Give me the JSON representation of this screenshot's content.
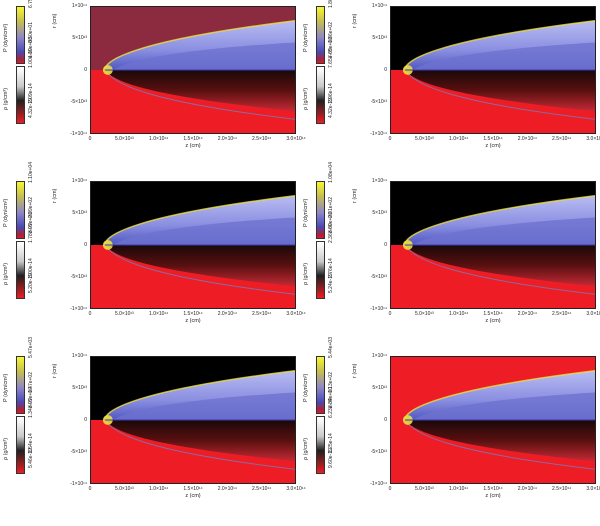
{
  "panels": [
    {
      "id": "top-left",
      "background": "#8c2a40",
      "colorbar_pressure": {
        "label": "P (dyn/cm²)",
        "ticks": [
          "6.75e+03",
          "8.50e+01",
          "1.10e+00"
        ]
      },
      "colorbar_density": {
        "label": "ρ (g/cm³)",
        "ticks": [
          "1.00e-09",
          "2.09e-14",
          "4.32e-19"
        ]
      },
      "y_label": "r (cm)",
      "y_ticks": [
        "1×10¹⁴",
        "5×10¹³",
        "0",
        "-5×10¹³",
        "-1×10¹⁴"
      ],
      "x_label": "z (cm)",
      "x_ticks": [
        "0",
        "5.0×10¹³",
        "1.0×10¹⁴",
        "1.5×10¹⁴",
        "2.0×10¹⁴",
        "2.5×10¹⁴",
        "3.0×10¹⁴"
      ]
    },
    {
      "id": "top-right",
      "background": "#000000",
      "colorbar_pressure": {
        "label": "P (dyn/cm²)",
        "ticks": [
          "1.86e+04",
          "1.86e+02",
          "7.65e+00"
        ]
      },
      "colorbar_density": {
        "label": "ρ (g/cm³)",
        "ticks": [
          "7.65e-09",
          "2.96e-14",
          "4.32e-19"
        ]
      },
      "y_label": "r (cm)",
      "y_ticks": [
        "1×10¹⁴",
        "5×10¹³",
        "0",
        "-5×10¹³",
        "-1×10¹⁴"
      ],
      "x_label": "z (cm)",
      "x_ticks": [
        "0",
        "5.0×10¹³",
        "1.0×10¹⁴",
        "1.5×10¹⁴",
        "2.0×10¹⁴",
        "2.5×10¹⁴",
        "3.0×10¹⁴"
      ]
    },
    {
      "id": "middle-left",
      "background": "#000000",
      "colorbar_pressure": {
        "label": "P (dyn/cm²)",
        "ticks": [
          "1.10e+04",
          "2.09e+02",
          "3.97e+00"
        ]
      },
      "colorbar_density": {
        "label": "ρ (g/cm³)",
        "ticks": [
          "1.78e-09",
          "3.00e-14",
          "5.20e-19"
        ]
      },
      "y_label": "r (cm)",
      "y_ticks": [
        "1×10¹⁴",
        "5×10¹³",
        "0",
        "-5×10¹³",
        "-1×10¹⁴"
      ],
      "x_label": "z (cm)",
      "x_ticks": [
        "0",
        "5.0×10¹³",
        "1.0×10¹⁴",
        "1.5×10¹⁴",
        "2.0×10¹⁴",
        "2.5×10¹⁴",
        "3.0×10¹⁴"
      ]
    },
    {
      "id": "middle-right",
      "background": "#000000",
      "colorbar_pressure": {
        "label": "P (dyn/cm²)",
        "ticks": [
          "1.08e+04",
          "2.01e+02",
          "3.60e+00"
        ]
      },
      "colorbar_density": {
        "label": "ρ (g/cm³)",
        "ticks": [
          "2.36e-09",
          "2.76e-14",
          "5.24e-19"
        ]
      },
      "y_label": "r (cm)",
      "y_ticks": [
        "1×10¹⁴",
        "5×10¹³",
        "0",
        "-5×10¹³",
        "-1×10¹⁴"
      ],
      "x_label": "z (cm)",
      "x_ticks": [
        "0",
        "5.0×10¹³",
        "1.0×10¹⁴",
        "1.5×10¹⁴",
        "2.0×10¹⁴",
        "2.5×10¹⁴",
        "3.0×10¹⁴"
      ]
    },
    {
      "id": "bottom-left",
      "background": "#000000",
      "colorbar_pressure": {
        "label": "P (dyn/cm²)",
        "ticks": [
          "5.47e+03",
          "1.47e+02",
          "3.97e+00"
        ]
      },
      "colorbar_density": {
        "label": "ρ (g/cm³)",
        "ticks": [
          "1.34e-09",
          "1.54e-14",
          "5.46e-19"
        ]
      },
      "y_label": "r (cm)",
      "y_ticks": [
        "1×10¹⁴",
        "5×10¹³",
        "0",
        "-5×10¹³",
        "-1×10¹⁴"
      ],
      "x_label": "z (cm)",
      "x_ticks": [
        "0",
        "5.0×10¹³",
        "1.0×10¹⁴",
        "1.5×10¹⁴",
        "2.0×10¹⁴",
        "2.5×10¹⁴",
        "3.0×10¹⁴"
      ]
    },
    {
      "id": "bottom-right",
      "background": "#ee1c24",
      "colorbar_pressure": {
        "label": "P (dyn/cm²)",
        "ticks": [
          "5.44e+03",
          "1.13e+02",
          "2.34e+00"
        ]
      },
      "colorbar_density": {
        "label": "ρ (g/cm³)",
        "ticks": [
          "6.23e-09",
          "1.25e-14",
          "9.60e-19"
        ]
      },
      "y_label": "r (cm)",
      "y_ticks": [
        "1×10¹⁴",
        "5×10¹³",
        "0",
        "-5×10¹³",
        "-1×10¹⁴"
      ],
      "x_label": "z (cm)",
      "x_ticks": [
        "0",
        "5.0×10¹³",
        "1.0×10¹⁴",
        "1.5×10¹⁴",
        "2.0×10¹⁴",
        "2.5×10¹⁴",
        "3.0×10¹⁴"
      ]
    }
  ],
  "colors": {
    "shock_shell": "#8a8ee0",
    "shock_edge": "#f0e040",
    "wake_dark": "#1a0808",
    "density_bg": "#ee1c24",
    "lower_fill": "#c42a36"
  }
}
